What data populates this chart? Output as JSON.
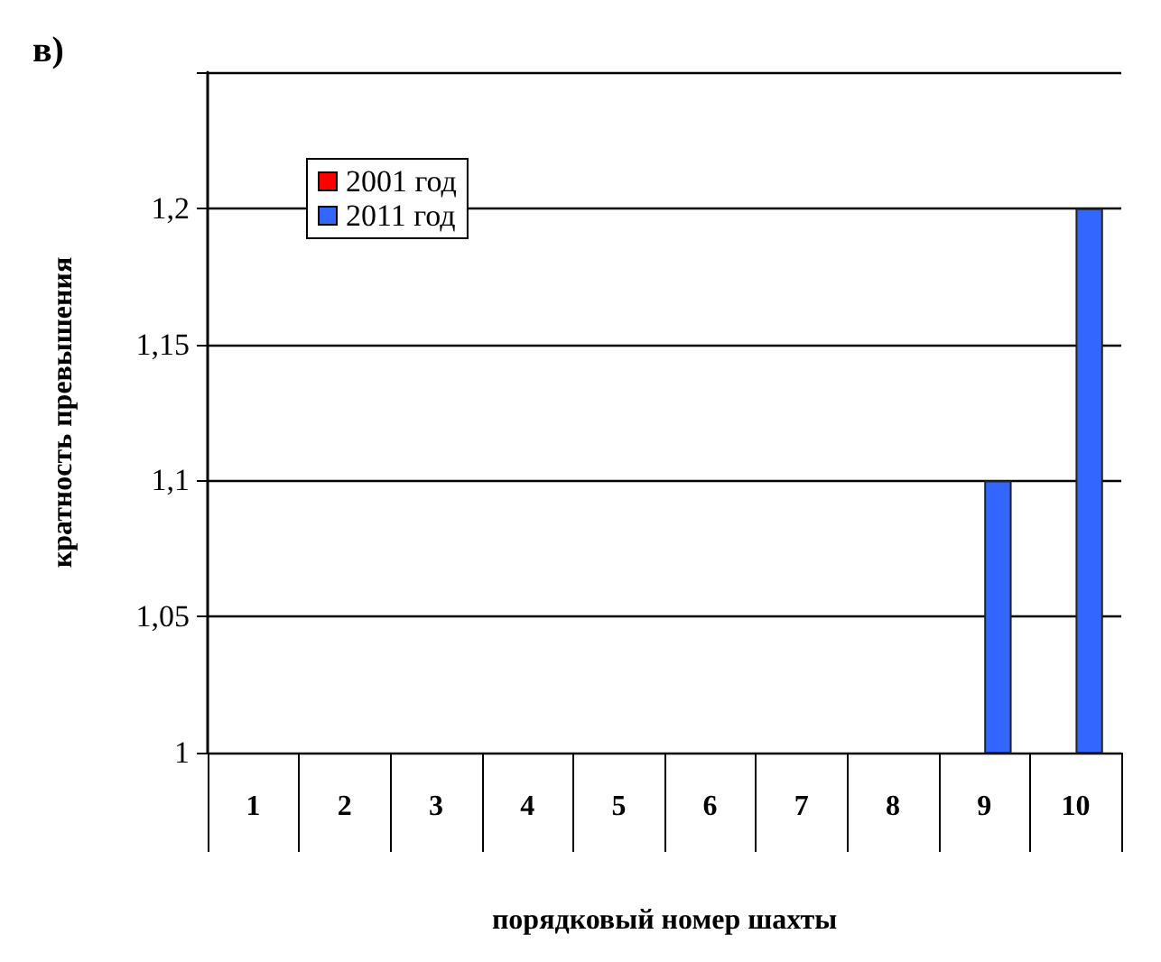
{
  "chart_data": {
    "type": "bar",
    "annotations": [
      "в)"
    ],
    "xlabel": "порядковый номер шахты",
    "ylabel": "кратность превышения",
    "categories": [
      "1",
      "2",
      "3",
      "4",
      "5",
      "6",
      "7",
      "8",
      "9",
      "10"
    ],
    "series": [
      {
        "name": "2001 год",
        "color": "#ff0000",
        "values": [
          null,
          null,
          null,
          null,
          null,
          null,
          null,
          null,
          null,
          null
        ]
      },
      {
        "name": "2011 год",
        "color": "#3366ff",
        "values": [
          null,
          null,
          null,
          null,
          null,
          null,
          null,
          null,
          1.1,
          1.2
        ]
      }
    ],
    "ylim": [
      1,
      1.25
    ],
    "yticks": [
      1,
      {
        "value": 1.05,
        "label": "1,05"
      },
      {
        "value": 1.1,
        "label": "1,1"
      },
      {
        "value": 1.15,
        "label": "1,15"
      },
      {
        "value": 1.2,
        "label": "1,2"
      },
      {
        "value": 1.25,
        "label": null
      }
    ],
    "grid": "y",
    "legend": "top left"
  }
}
